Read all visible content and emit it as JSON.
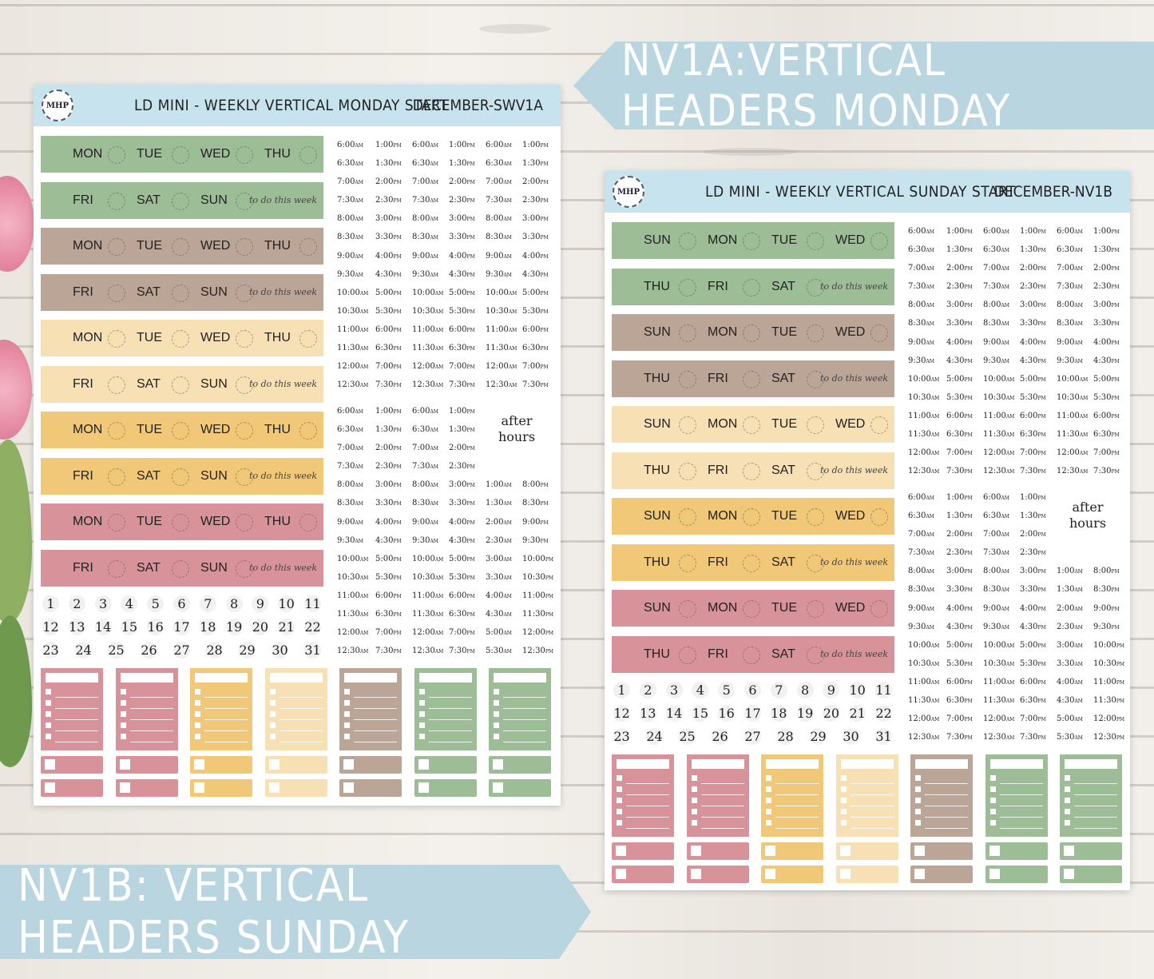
{
  "banners": {
    "top": "NV1A:VERTICAL HEADERS MONDAY",
    "bottom": "NV1B: VERTICAL HEADERS SUNDAY"
  },
  "colors": {
    "sage": "#9dbd97",
    "taupe": "#baa597",
    "cream": "#f7e0b3",
    "mustard": "#f0c877",
    "rose": "#d8939a",
    "header_blue": "#c6e3ee",
    "banner_blue": "#b8d5e0"
  },
  "sheet_a": {
    "logo": "MHP",
    "title": "LD MINI - WEEKLY VERTICAL MONDAY START",
    "code": "DECEMBER-SWV1A",
    "row_odd_days": [
      "MON",
      "TUE",
      "WED",
      "THU"
    ],
    "row_even_days": [
      "FRI",
      "SAT",
      "SUN"
    ],
    "todo": "to do this week",
    "after_hours": "after hours"
  },
  "sheet_b": {
    "logo": "MHP",
    "title": "LD MINI - WEEKLY VERTICAL SUNDAY START",
    "code": "DECEMBER-NV1B",
    "row_odd_days": [
      "SUN",
      "MON",
      "TUE",
      "WED"
    ],
    "row_even_days": [
      "THU",
      "FRI",
      "SAT"
    ],
    "todo": "to do this week",
    "after_hours": "after hours"
  },
  "times_am": [
    "6:00",
    "6:30",
    "7:00",
    "7:30",
    "8:00",
    "8:30",
    "9:00",
    "9:30",
    "10:00",
    "10:30",
    "11:00",
    "11:30",
    "12:00",
    "12:30"
  ],
  "times_pm": [
    "1:00",
    "1:30",
    "2:00",
    "2:30",
    "3:00",
    "3:30",
    "4:00",
    "4:30",
    "5:00",
    "5:30",
    "6:00",
    "6:30",
    "7:00",
    "7:30"
  ],
  "after_am": [
    "1:00",
    "1:30",
    "2:00",
    "2:30",
    "3:00",
    "3:30",
    "4:00",
    "4:30",
    "5:00",
    "5:30"
  ],
  "after_pm": [
    "8:00",
    "8:30",
    "9:00",
    "9:30",
    "10:00",
    "10:30",
    "11:00",
    "11:30",
    "12:00",
    "12:30"
  ],
  "am_suffix": "AM",
  "pm_suffix": "PM",
  "dates": [
    "1",
    "2",
    "3",
    "4",
    "5",
    "6",
    "7",
    "8",
    "9",
    "10",
    "11",
    "12",
    "13",
    "14",
    "15",
    "16",
    "17",
    "18",
    "19",
    "20",
    "21",
    "22",
    "23",
    "24",
    "25",
    "26",
    "27",
    "28",
    "29",
    "30",
    "31"
  ]
}
